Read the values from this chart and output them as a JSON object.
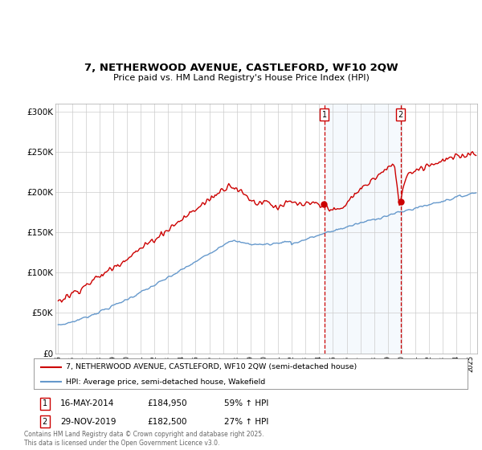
{
  "title": "7, NETHERWOOD AVENUE, CASTLEFORD, WF10 2QW",
  "subtitle": "Price paid vs. HM Land Registry's House Price Index (HPI)",
  "ylim": [
    0,
    310000
  ],
  "xlim_start": 1994.8,
  "xlim_end": 2025.5,
  "yticks": [
    0,
    50000,
    100000,
    150000,
    200000,
    250000,
    300000
  ],
  "ytick_labels": [
    "£0",
    "£50K",
    "£100K",
    "£150K",
    "£200K",
    "£250K",
    "£300K"
  ],
  "sale1_date": 2014.37,
  "sale1_price": 184950,
  "sale2_date": 2019.92,
  "sale2_price": 182500,
  "legend_property": "7, NETHERWOOD AVENUE, CASTLEFORD, WF10 2QW (semi-detached house)",
  "legend_hpi": "HPI: Average price, semi-detached house, Wakefield",
  "annotation1_label": "1",
  "annotation1_date": "16-MAY-2014",
  "annotation1_price": "£184,950",
  "annotation1_pct": "59% ↑ HPI",
  "annotation2_label": "2",
  "annotation2_date": "29-NOV-2019",
  "annotation2_price": "£182,500",
  "annotation2_pct": "27% ↑ HPI",
  "footer": "Contains HM Land Registry data © Crown copyright and database right 2025.\nThis data is licensed under the Open Government Licence v3.0.",
  "property_color": "#cc0000",
  "hpi_color": "#6699cc",
  "shaded_color": "#ddeeff",
  "vline_color": "#cc0000",
  "background_color": "#ffffff",
  "grid_color": "#cccccc"
}
